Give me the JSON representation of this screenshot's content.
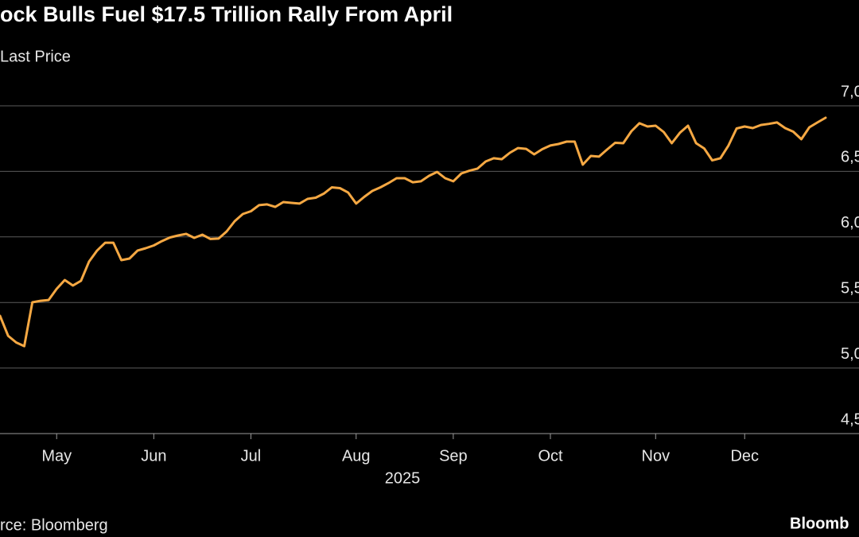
{
  "chart_data": {
    "type": "line",
    "title": "ock Bulls Fuel $17.5 Trillion Rally From April",
    "source": "rce: Bloomberg",
    "brand": "Bloomb",
    "x_axis_label": "2025",
    "categories": [
      null,
      null,
      null,
      null,
      null,
      null,
      null,
      "May",
      null,
      null,
      null,
      null,
      null,
      null,
      null,
      null,
      null,
      null,
      null,
      "Jun",
      null,
      null,
      null,
      null,
      null,
      null,
      null,
      null,
      null,
      null,
      null,
      "Jul",
      null,
      null,
      null,
      null,
      null,
      null,
      null,
      null,
      null,
      null,
      null,
      null,
      "Aug",
      null,
      null,
      null,
      null,
      null,
      null,
      null,
      null,
      null,
      null,
      null,
      "Sep",
      null,
      null,
      null,
      null,
      null,
      null,
      null,
      null,
      null,
      null,
      null,
      "Oct",
      null,
      null,
      null,
      null,
      null,
      null,
      null,
      null,
      null,
      null,
      null,
      null,
      "Nov",
      null,
      null,
      null,
      null,
      null,
      null,
      null,
      null,
      null,
      null,
      "Dec",
      null,
      null,
      null,
      null,
      null,
      null,
      null,
      null,
      null,
      null
    ],
    "series": [
      {
        "name": "Last Price",
        "color": "#f5a843",
        "values": [
          5398,
          5246,
          5195,
          5167,
          5501,
          5513,
          5519,
          5604,
          5671,
          5629,
          5665,
          5811,
          5896,
          5956,
          5956,
          5823,
          5835,
          5896,
          5914,
          5935,
          5968,
          5996,
          6011,
          6023,
          5993,
          6017,
          5984,
          5987,
          6041,
          6120,
          6175,
          6196,
          6242,
          6248,
          6229,
          6266,
          6260,
          6254,
          6290,
          6299,
          6330,
          6378,
          6372,
          6339,
          6254,
          6305,
          6351,
          6378,
          6411,
          6448,
          6448,
          6417,
          6424,
          6466,
          6496,
          6448,
          6424,
          6484,
          6505,
          6521,
          6575,
          6600,
          6593,
          6642,
          6678,
          6672,
          6630,
          6669,
          6697,
          6709,
          6727,
          6727,
          6551,
          6618,
          6612,
          6666,
          6718,
          6715,
          6806,
          6867,
          6842,
          6848,
          6800,
          6715,
          6794,
          6848,
          6715,
          6675,
          6584,
          6600,
          6697,
          6827,
          6842,
          6830,
          6854,
          6862,
          6873,
          6830,
          6803,
          6745,
          6836,
          6873,
          6909
        ]
      }
    ],
    "ylim": [
      4500,
      7000
    ],
    "yticks": [
      {
        "value": 4500,
        "label": "4,5"
      },
      {
        "value": 5000,
        "label": "5,0"
      },
      {
        "value": 5500,
        "label": "5,5"
      },
      {
        "value": 6000,
        "label": "6,0"
      },
      {
        "value": 6500,
        "label": "6,5"
      },
      {
        "value": 7000,
        "label": "7,0"
      }
    ],
    "grid": true
  }
}
